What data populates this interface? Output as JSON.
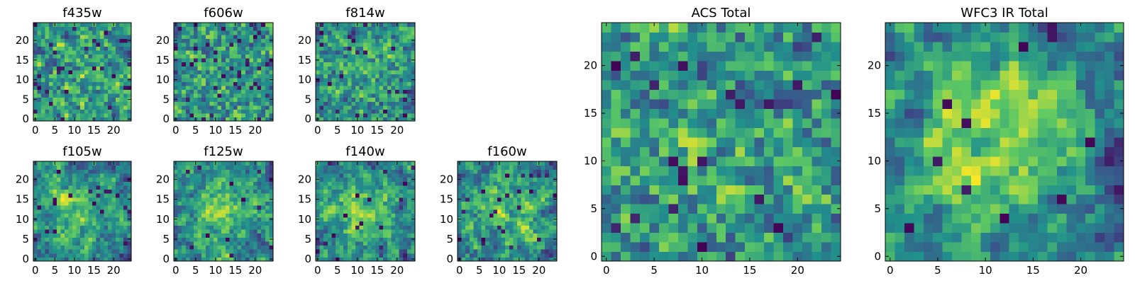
{
  "figure": {
    "colormap": "viridis",
    "colormap_stops": [
      "#440154",
      "#3b528b",
      "#21918c",
      "#5ec962",
      "#fde725"
    ],
    "background": "#ffffff"
  },
  "chart_data": [
    {
      "type": "heatmap",
      "title": "f435w",
      "grid": [
        25,
        25
      ],
      "xticks": [
        "0",
        "5",
        "10",
        "15",
        "20"
      ],
      "yticks": [
        "0",
        "5",
        "10",
        "15",
        "20"
      ],
      "xlim": [
        0,
        24
      ],
      "ylim": [
        0,
        24
      ],
      "seed": 11,
      "smooth": 0.15,
      "center_boost": 0.05,
      "dark_fraction": 0.05
    },
    {
      "type": "heatmap",
      "title": "f606w",
      "grid": [
        25,
        25
      ],
      "xticks": [
        "0",
        "5",
        "10",
        "15",
        "20"
      ],
      "yticks": [
        "0",
        "5",
        "10",
        "15",
        "20"
      ],
      "xlim": [
        0,
        24
      ],
      "ylim": [
        0,
        24
      ],
      "seed": 23,
      "smooth": 0.2,
      "center_boost": 0.05,
      "dark_fraction": 0.05
    },
    {
      "type": "heatmap",
      "title": "f814w",
      "grid": [
        25,
        25
      ],
      "xticks": [
        "0",
        "5",
        "10",
        "15",
        "20"
      ],
      "yticks": [
        "0",
        "5",
        "10",
        "15",
        "20"
      ],
      "xlim": [
        0,
        24
      ],
      "ylim": [
        0,
        24
      ],
      "seed": 37,
      "smooth": 0.25,
      "center_boost": 0.1,
      "dark_fraction": 0.04
    },
    {
      "type": "heatmap",
      "title": "f105w",
      "grid": [
        25,
        25
      ],
      "xticks": [
        "0",
        "5",
        "10",
        "15",
        "20"
      ],
      "yticks": [
        "0",
        "5",
        "10",
        "15",
        "20"
      ],
      "xlim": [
        0,
        24
      ],
      "ylim": [
        0,
        24
      ],
      "seed": 41,
      "smooth": 0.55,
      "center_boost": 0.3,
      "dark_fraction": 0.02
    },
    {
      "type": "heatmap",
      "title": "f125w",
      "grid": [
        25,
        25
      ],
      "xticks": [
        "0",
        "5",
        "10",
        "15",
        "20"
      ],
      "yticks": [
        "0",
        "5",
        "10",
        "15",
        "20"
      ],
      "xlim": [
        0,
        24
      ],
      "ylim": [
        0,
        24
      ],
      "seed": 53,
      "smooth": 0.5,
      "center_boost": 0.3,
      "dark_fraction": 0.02
    },
    {
      "type": "heatmap",
      "title": "f140w",
      "grid": [
        25,
        25
      ],
      "xticks": [
        "0",
        "5",
        "10",
        "15",
        "20"
      ],
      "yticks": [
        "0",
        "5",
        "10",
        "15",
        "20"
      ],
      "xlim": [
        0,
        24
      ],
      "ylim": [
        0,
        24
      ],
      "seed": 67,
      "smooth": 0.5,
      "center_boost": 0.3,
      "dark_fraction": 0.03
    },
    {
      "type": "heatmap",
      "title": "f160w",
      "grid": [
        25,
        25
      ],
      "xticks": [
        "0",
        "5",
        "10",
        "15",
        "20"
      ],
      "yticks": [
        "0",
        "5",
        "10",
        "15",
        "20"
      ],
      "xlim": [
        0,
        24
      ],
      "ylim": [
        0,
        24
      ],
      "seed": 79,
      "smooth": 0.55,
      "center_boost": 0.3,
      "dark_fraction": 0.03
    },
    {
      "type": "heatmap",
      "title": "ACS Total",
      "grid": [
        25,
        25
      ],
      "xticks": [
        "0",
        "5",
        "10",
        "15",
        "20"
      ],
      "yticks": [
        "0",
        "5",
        "10",
        "15",
        "20"
      ],
      "xlim": [
        0,
        24
      ],
      "ylim": [
        0,
        24
      ],
      "seed": 97,
      "smooth": 0.3,
      "center_boost": 0.1,
      "dark_fraction": 0.04
    },
    {
      "type": "heatmap",
      "title": "WFC3 IR Total",
      "grid": [
        25,
        25
      ],
      "xticks": [
        "0",
        "5",
        "10",
        "15",
        "20"
      ],
      "yticks": [
        "0",
        "5",
        "10",
        "15",
        "20"
      ],
      "xlim": [
        0,
        24
      ],
      "ylim": [
        0,
        24
      ],
      "seed": 113,
      "smooth": 0.7,
      "center_boost": 0.45,
      "dark_fraction": 0.02
    }
  ]
}
